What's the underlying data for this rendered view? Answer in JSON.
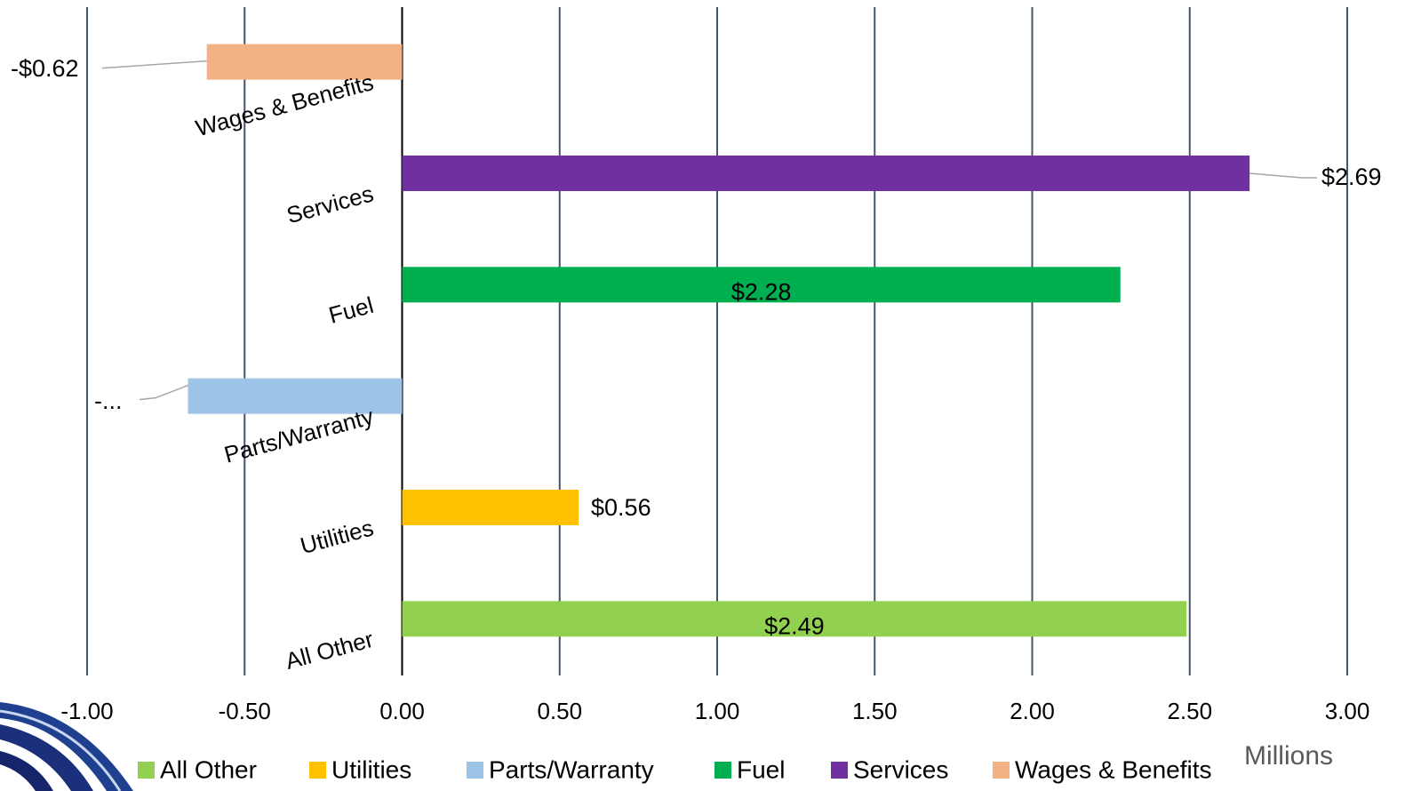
{
  "chart_data": {
    "type": "bar",
    "orientation": "horizontal",
    "categories": [
      "Wages & Benefits",
      "Services",
      "Fuel",
      "Parts/Warranty",
      "Utilities",
      "All Other"
    ],
    "values": [
      -0.62,
      2.69,
      2.28,
      -0.68,
      0.56,
      2.49
    ],
    "value_labels": [
      "-$0.62",
      "$2.69",
      "$2.28",
      "-...",
      "$0.56",
      "$2.49"
    ],
    "colors": [
      "#f4b183",
      "#7030a0",
      "#00b050",
      "#9dc3e6",
      "#ffc000",
      "#92d050"
    ],
    "xlim": [
      -1,
      3
    ],
    "xticks": [
      {
        "value": -1,
        "label": "-1.00"
      },
      {
        "value": -0.5,
        "label": "-0.50"
      },
      {
        "value": 0,
        "label": "0.00"
      },
      {
        "value": 0.5,
        "label": "0.50"
      },
      {
        "value": 1,
        "label": "1.00"
      },
      {
        "value": 1.5,
        "label": "1.50"
      },
      {
        "value": 2,
        "label": "2.00"
      },
      {
        "value": 2.5,
        "label": "2.50"
      },
      {
        "value": 3,
        "label": "3.00"
      }
    ],
    "x_unit_label": "Millions",
    "grid": true
  }
}
